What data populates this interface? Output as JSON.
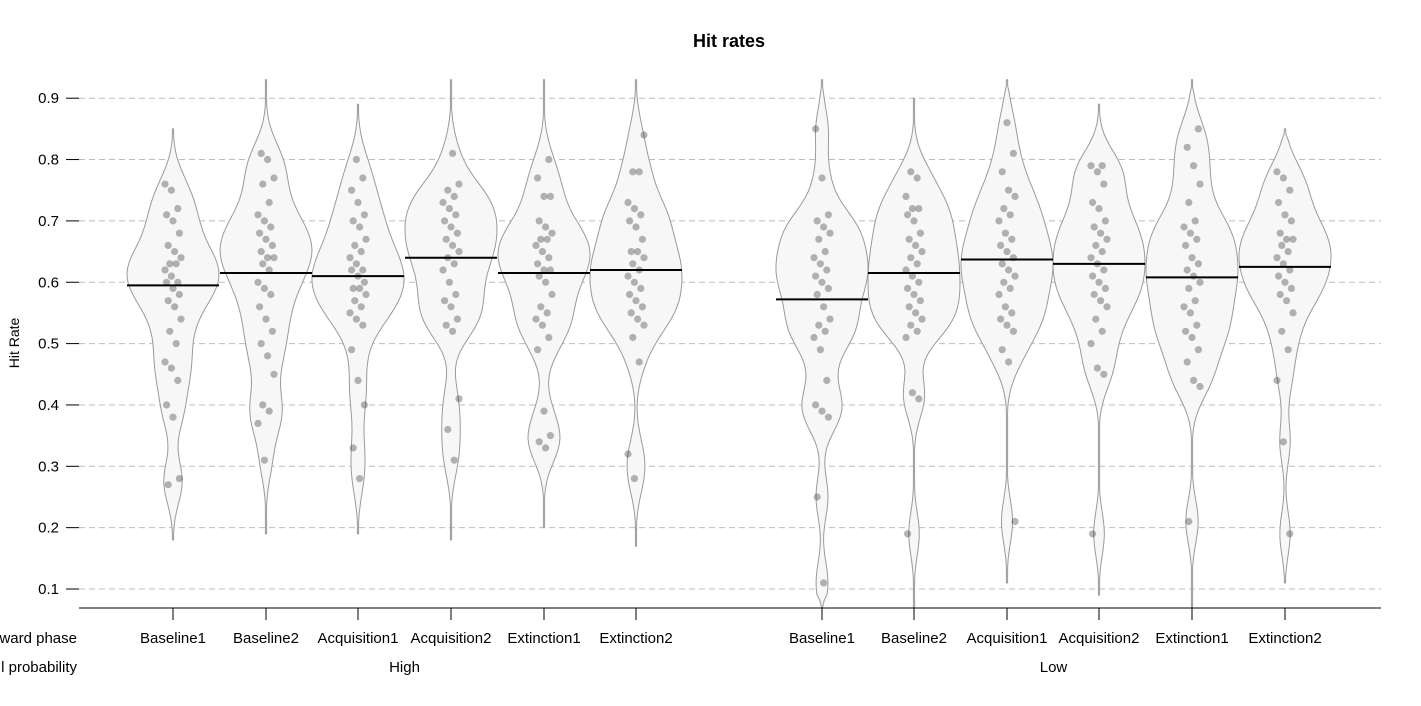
{
  "chart_data": {
    "type": "violin",
    "title": "Hit rates",
    "ylabel": "Hit Rate",
    "ylim": [
      0.07,
      0.93
    ],
    "yticks": [
      0.1,
      0.2,
      0.3,
      0.4,
      0.5,
      0.6,
      0.7,
      0.8,
      0.9
    ],
    "ytick_labels": [
      "0.1",
      "0.2",
      "0.3",
      "0.4",
      "0.5",
      "0.6",
      "0.7",
      "0.8",
      "0.9"
    ],
    "grid": true,
    "factor_labels": [
      "ward phase",
      "l probability"
    ],
    "groups": [
      {
        "label": "High",
        "categories": [
          {
            "label": "Baseline1",
            "median": 0.595,
            "range": [
              0.18,
              0.85
            ],
            "points": [
              0.76,
              0.75,
              0.72,
              0.71,
              0.7,
              0.68,
              0.66,
              0.65,
              0.64,
              0.63,
              0.63,
              0.62,
              0.61,
              0.6,
              0.6,
              0.59,
              0.58,
              0.57,
              0.56,
              0.54,
              0.52,
              0.5,
              0.47,
              0.46,
              0.44,
              0.4,
              0.38,
              0.28,
              0.27
            ]
          },
          {
            "label": "Baseline2",
            "median": 0.615,
            "range": [
              0.19,
              0.93
            ],
            "points": [
              0.81,
              0.8,
              0.77,
              0.76,
              0.73,
              0.71,
              0.7,
              0.69,
              0.68,
              0.67,
              0.66,
              0.65,
              0.64,
              0.64,
              0.63,
              0.62,
              0.6,
              0.59,
              0.58,
              0.56,
              0.54,
              0.52,
              0.5,
              0.48,
              0.45,
              0.4,
              0.39,
              0.37,
              0.31
            ]
          },
          {
            "label": "Acquisition1",
            "median": 0.61,
            "range": [
              0.19,
              0.89
            ],
            "points": [
              0.8,
              0.77,
              0.75,
              0.73,
              0.71,
              0.7,
              0.69,
              0.67,
              0.66,
              0.65,
              0.64,
              0.63,
              0.62,
              0.62,
              0.61,
              0.6,
              0.59,
              0.59,
              0.58,
              0.57,
              0.56,
              0.55,
              0.54,
              0.53,
              0.49,
              0.44,
              0.4,
              0.33,
              0.28
            ]
          },
          {
            "label": "Acquisition2",
            "median": 0.64,
            "range": [
              0.18,
              0.93
            ],
            "points": [
              0.81,
              0.76,
              0.75,
              0.74,
              0.73,
              0.72,
              0.71,
              0.7,
              0.69,
              0.68,
              0.67,
              0.66,
              0.65,
              0.64,
              0.63,
              0.62,
              0.6,
              0.58,
              0.57,
              0.56,
              0.54,
              0.53,
              0.52,
              0.41,
              0.36,
              0.31
            ]
          },
          {
            "label": "Extinction1",
            "median": 0.615,
            "range": [
              0.2,
              0.93
            ],
            "points": [
              0.8,
              0.77,
              0.74,
              0.74,
              0.7,
              0.69,
              0.68,
              0.67,
              0.67,
              0.66,
              0.65,
              0.64,
              0.63,
              0.62,
              0.62,
              0.61,
              0.6,
              0.58,
              0.56,
              0.55,
              0.54,
              0.53,
              0.51,
              0.49,
              0.39,
              0.35,
              0.34,
              0.33
            ]
          },
          {
            "label": "Extinction2",
            "median": 0.62,
            "range": [
              0.17,
              0.93
            ],
            "points": [
              0.84,
              0.78,
              0.78,
              0.73,
              0.72,
              0.71,
              0.7,
              0.69,
              0.67,
              0.65,
              0.65,
              0.64,
              0.63,
              0.62,
              0.61,
              0.6,
              0.59,
              0.58,
              0.57,
              0.56,
              0.55,
              0.54,
              0.53,
              0.51,
              0.47,
              0.32,
              0.28
            ]
          }
        ]
      },
      {
        "label": "Low",
        "categories": [
          {
            "label": "Baseline1",
            "median": 0.572,
            "range": [
              0.07,
              0.93
            ],
            "points": [
              0.85,
              0.77,
              0.71,
              0.7,
              0.69,
              0.68,
              0.67,
              0.65,
              0.64,
              0.63,
              0.62,
              0.61,
              0.6,
              0.59,
              0.58,
              0.56,
              0.54,
              0.53,
              0.52,
              0.51,
              0.49,
              0.44,
              0.4,
              0.39,
              0.38,
              0.25,
              0.11
            ]
          },
          {
            "label": "Baseline2",
            "median": 0.615,
            "range": [
              0.07,
              0.9
            ],
            "points": [
              0.78,
              0.77,
              0.74,
              0.72,
              0.72,
              0.71,
              0.7,
              0.68,
              0.67,
              0.66,
              0.65,
              0.64,
              0.63,
              0.62,
              0.61,
              0.6,
              0.59,
              0.58,
              0.57,
              0.56,
              0.55,
              0.54,
              0.53,
              0.52,
              0.51,
              0.42,
              0.41,
              0.19
            ]
          },
          {
            "label": "Acquisition1",
            "median": 0.637,
            "range": [
              0.11,
              0.93
            ],
            "points": [
              0.86,
              0.81,
              0.78,
              0.75,
              0.74,
              0.72,
              0.71,
              0.7,
              0.68,
              0.67,
              0.66,
              0.65,
              0.64,
              0.63,
              0.62,
              0.61,
              0.6,
              0.59,
              0.58,
              0.56,
              0.55,
              0.54,
              0.53,
              0.52,
              0.49,
              0.47,
              0.21
            ]
          },
          {
            "label": "Acquisition2",
            "median": 0.63,
            "range": [
              0.09,
              0.89
            ],
            "points": [
              0.79,
              0.79,
              0.78,
              0.76,
              0.73,
              0.72,
              0.7,
              0.69,
              0.68,
              0.67,
              0.66,
              0.65,
              0.64,
              0.63,
              0.62,
              0.61,
              0.6,
              0.59,
              0.58,
              0.57,
              0.56,
              0.54,
              0.52,
              0.5,
              0.46,
              0.45,
              0.19
            ]
          },
          {
            "label": "Extinction1",
            "median": 0.608,
            "range": [
              0.07,
              0.93
            ],
            "points": [
              0.85,
              0.82,
              0.79,
              0.76,
              0.73,
              0.7,
              0.69,
              0.68,
              0.67,
              0.66,
              0.64,
              0.63,
              0.62,
              0.61,
              0.6,
              0.59,
              0.57,
              0.56,
              0.55,
              0.53,
              0.52,
              0.51,
              0.49,
              0.47,
              0.44,
              0.43,
              0.21
            ]
          },
          {
            "label": "Extinction2",
            "median": 0.625,
            "range": [
              0.11,
              0.85
            ],
            "points": [
              0.78,
              0.77,
              0.75,
              0.73,
              0.71,
              0.7,
              0.68,
              0.67,
              0.67,
              0.66,
              0.65,
              0.64,
              0.63,
              0.62,
              0.61,
              0.6,
              0.59,
              0.58,
              0.57,
              0.55,
              0.52,
              0.49,
              0.44,
              0.34,
              0.19
            ]
          }
        ]
      }
    ]
  }
}
